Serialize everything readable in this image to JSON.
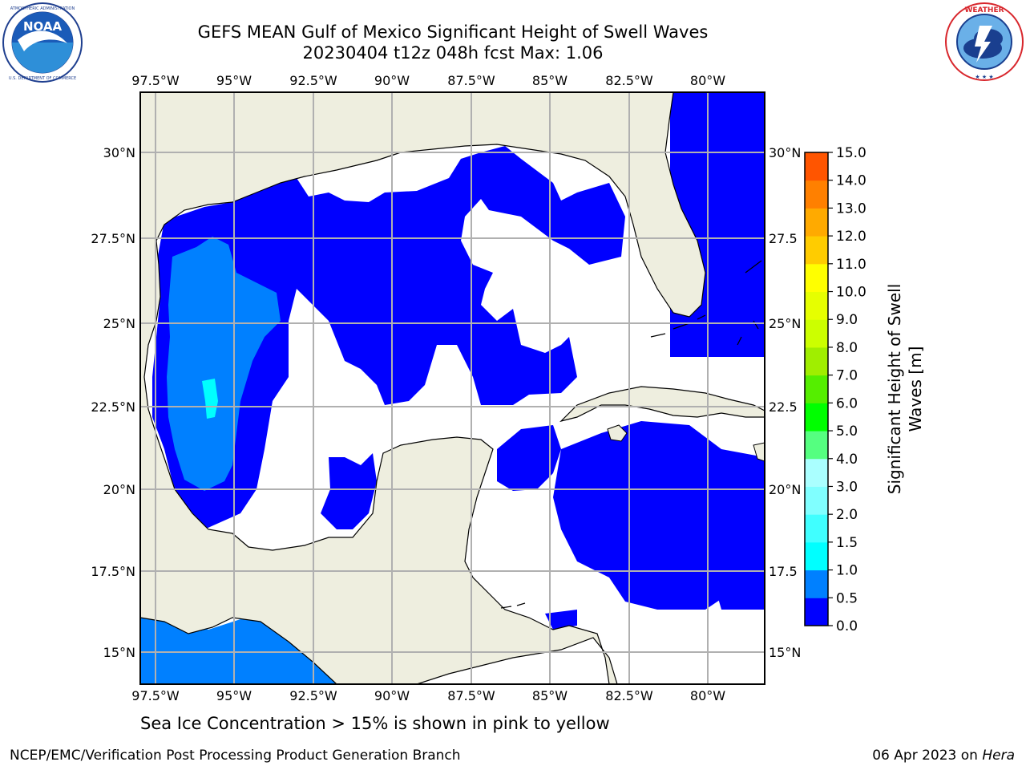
{
  "header": {
    "title_line1": "GEFS MEAN Gulf of Mexico Significant Height of Swell Waves",
    "title_line2": "20230404 t12z 048h fcst   Max: 1.06"
  },
  "logos": {
    "noaa": {
      "text": "NOAA",
      "ring_text": "NATIONAL OCEANIC AND ATMOSPHERIC ADMINISTRATION · U.S. DEPARTMENT OF COMMERCE"
    },
    "nws": {
      "ring_text": "NATIONAL WEATHER SERVICE"
    }
  },
  "map": {
    "lon_labels": [
      "97.5°W",
      "95°W",
      "92.5°W",
      "90°W",
      "87.5°W",
      "85°W",
      "82.5°W",
      "80°W"
    ],
    "lat_labels_left": [
      "30°N",
      "27.5°N",
      "25°N",
      "22.5°N",
      "20°N",
      "17.5°N",
      "15°N"
    ],
    "lat_labels_right": [
      "30°N",
      "27.5",
      "25°N",
      "22.5",
      "20°N",
      "17.5",
      "15°N"
    ]
  },
  "colorbar": {
    "title_line1": "Significant Height of Swell",
    "title_line2": "Waves [m]",
    "ticks": [
      "0.0",
      "0.5",
      "1.0",
      "1.5",
      "2.0",
      "3.0",
      "4.0",
      "5.0",
      "6.0",
      "7.0",
      "8.0",
      "9.0",
      "10.0",
      "11.0",
      "12.0",
      "13.0",
      "14.0",
      "15.0"
    ],
    "colors": [
      "#0000ff",
      "#0080ff",
      "#00ffff",
      "#40ffff",
      "#80ffff",
      "#aaffff",
      "#55ff80",
      "#00ff00",
      "#55ee00",
      "#a0ee00",
      "#ccff00",
      "#e6ff00",
      "#ffff00",
      "#ffcc00",
      "#ffaa00",
      "#ff8000",
      "#ff5500",
      "#ff2000",
      "#ff0000"
    ]
  },
  "colors": {
    "land": "#eeeedf",
    "swell_0_05": "#0000ff",
    "swell_05_10": "#0080ff",
    "swell_10_15": "#00ffff",
    "grid": "#b0b0b0"
  },
  "footer": {
    "note": "Sea Ice Concentration > 15% is shown in pink to yellow",
    "left": "NCEP/EMC/Verification Post Processing Product Generation Branch",
    "right_date": "06 Apr 2023 on ",
    "right_host": "Hera"
  }
}
